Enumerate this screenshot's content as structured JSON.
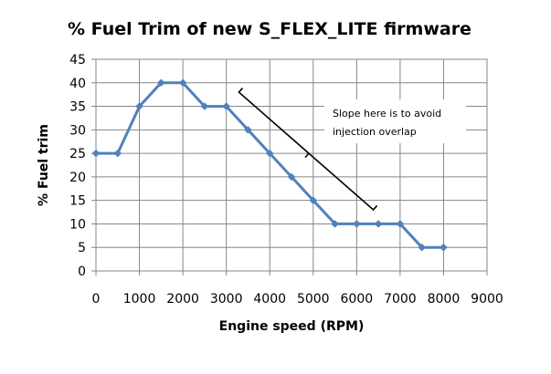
{
  "chart_data": {
    "type": "line",
    "title": "% Fuel Trim of new S_FLEX_LITE firmware",
    "xlabel": "Engine speed (RPM)",
    "ylabel": "% Fuel trim",
    "xlim": [
      0,
      9000
    ],
    "ylim": [
      0,
      45
    ],
    "xticks": [
      0,
      1000,
      2000,
      3000,
      4000,
      5000,
      6000,
      7000,
      8000,
      9000
    ],
    "yticks": [
      0,
      5,
      10,
      15,
      20,
      25,
      30,
      35,
      40,
      45
    ],
    "grid": true,
    "legend": "none",
    "series_color": "#4f81bd",
    "series": [
      {
        "x": [
          0,
          500,
          1000,
          1500,
          2000,
          2500,
          3000,
          3500,
          4000,
          4500,
          5000,
          5500,
          6000,
          6500,
          7000,
          7500,
          8000
        ],
        "y": [
          25,
          25,
          35,
          40,
          40,
          35,
          35,
          30,
          25,
          20,
          15,
          10,
          10,
          10,
          10,
          5,
          5
        ]
      }
    ],
    "annotation": {
      "lines": [
        "Slope here is to avoid",
        "injection overlap"
      ],
      "bracket_from": [
        3500,
        38
      ],
      "bracket_to": [
        6300,
        13
      ]
    }
  }
}
